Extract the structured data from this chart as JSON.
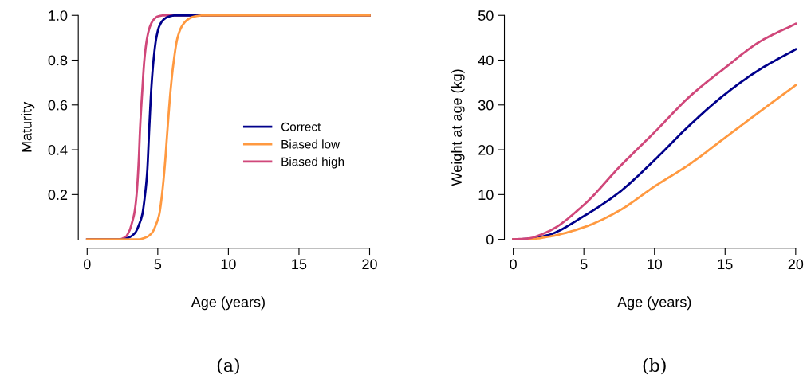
{
  "chart_data": [
    {
      "type": "line",
      "xlabel": "Age (years)",
      "ylabel": "Maturity",
      "xlim": [
        0,
        20
      ],
      "ylim": [
        0,
        1
      ],
      "xticks": [
        0,
        5,
        10,
        15,
        20
      ],
      "yticks": [
        0.2,
        0.4,
        0.6,
        0.8,
        {
          "value": 1,
          "label": "1.0"
        }
      ],
      "grid": false,
      "legend": "right",
      "annotations": [
        "(a)"
      ],
      "series": [
        {
          "name": "Correct",
          "color": "#00008b",
          "x": [
            0,
            2.5,
            3.0,
            3.4,
            3.7,
            3.9,
            4.1,
            4.25,
            4.4,
            4.55,
            4.7,
            4.9,
            5.1,
            5.4,
            5.8,
            6.3,
            8,
            20
          ],
          "values": [
            0,
            0,
            0.01,
            0.03,
            0.07,
            0.11,
            0.2,
            0.3,
            0.5,
            0.68,
            0.8,
            0.9,
            0.95,
            0.98,
            0.995,
            1,
            1,
            1
          ]
        },
        {
          "name": "Biased low",
          "color": "#ff9940",
          "x": [
            0,
            3.6,
            4.2,
            4.6,
            4.9,
            5.1,
            5.3,
            5.5,
            5.7,
            5.9,
            6.1,
            6.4,
            6.7,
            7.1,
            7.6,
            8.3,
            10,
            20
          ],
          "values": [
            0,
            0,
            0.01,
            0.03,
            0.07,
            0.11,
            0.2,
            0.33,
            0.5,
            0.66,
            0.78,
            0.9,
            0.95,
            0.98,
            0.995,
            1,
            1,
            1
          ]
        },
        {
          "name": "Biased high",
          "color": "#d0477a",
          "x": [
            0,
            2.2,
            2.7,
            3.0,
            3.2,
            3.35,
            3.5,
            3.65,
            3.75,
            3.9,
            4.05,
            4.25,
            4.45,
            4.7,
            5.0,
            5.5,
            7,
            20
          ],
          "values": [
            0,
            0,
            0.01,
            0.04,
            0.08,
            0.12,
            0.2,
            0.35,
            0.5,
            0.66,
            0.8,
            0.9,
            0.95,
            0.98,
            0.995,
            1,
            1,
            1
          ]
        }
      ]
    },
    {
      "type": "line",
      "xlabel": "Age (years)",
      "ylabel": "Weight at age (kg)",
      "xlim": [
        0,
        20
      ],
      "ylim": [
        0,
        50
      ],
      "xticks": [
        0,
        5,
        10,
        15,
        20
      ],
      "yticks": [
        0,
        10,
        20,
        30,
        40,
        50
      ],
      "grid": false,
      "annotations": [
        "(b)"
      ],
      "series": [
        {
          "color": "#00008b",
          "x": [
            0,
            1,
            2.5,
            5,
            7.5,
            10,
            12.5,
            15,
            17.5,
            20
          ],
          "values": [
            0,
            0.1,
            1.0,
            5.2,
            10.5,
            17.7,
            25.5,
            32.4,
            38,
            42.4
          ]
        },
        {
          "color": "#ff9940",
          "x": [
            0,
            1,
            2.5,
            5,
            7.5,
            10,
            12.5,
            15,
            17.5,
            20
          ],
          "values": [
            0,
            0,
            0.6,
            2.7,
            6.4,
            11.8,
            16.8,
            22.7,
            28.6,
            34.4
          ]
        },
        {
          "color": "#d0477a",
          "x": [
            0,
            1,
            2.5,
            5,
            7.5,
            10,
            12.5,
            15,
            17.5,
            20
          ],
          "values": [
            0,
            0.2,
            1.8,
            7.7,
            16.1,
            23.9,
            31.9,
            38.3,
            44.2,
            48.1
          ]
        }
      ]
    }
  ]
}
